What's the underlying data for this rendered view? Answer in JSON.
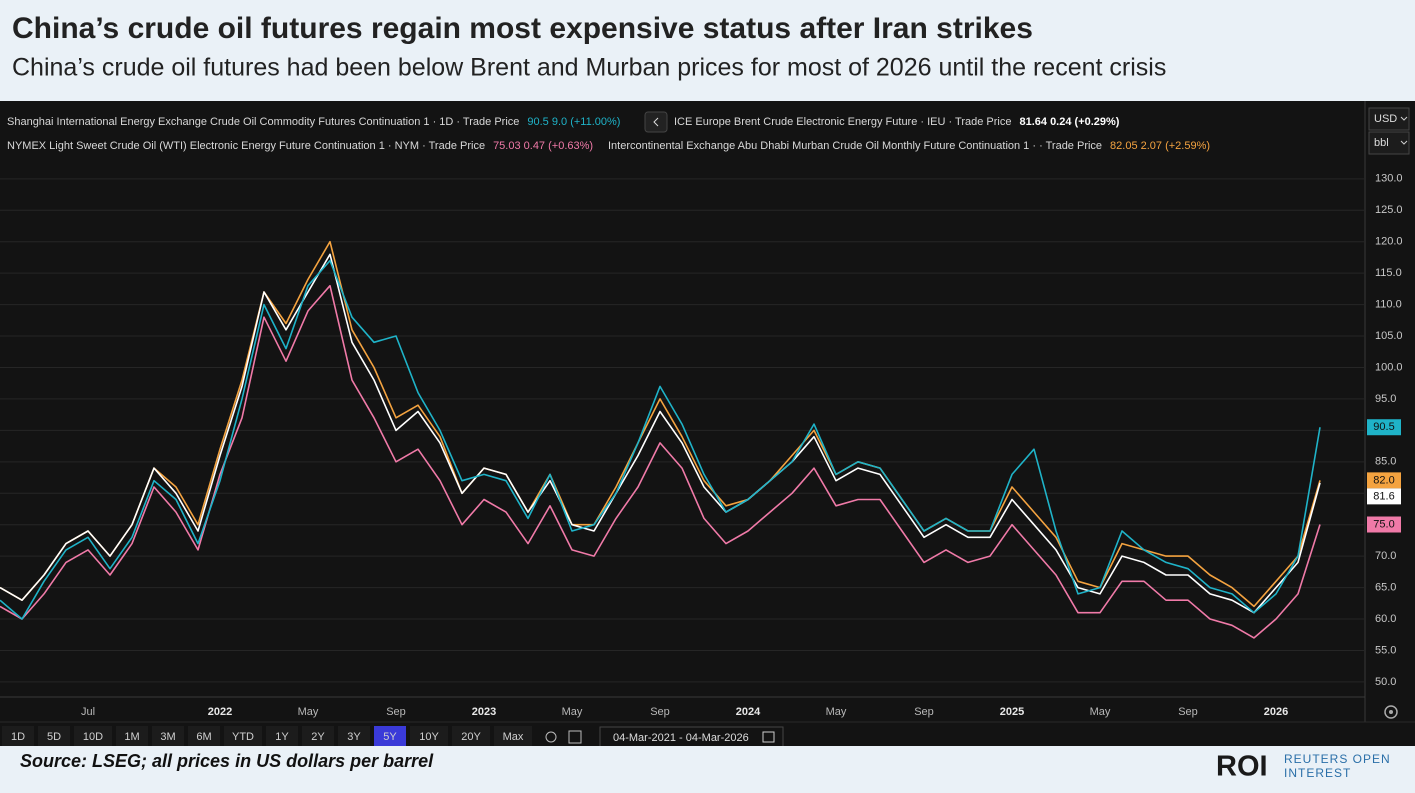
{
  "header": {
    "title": "China’s crude oil futures regain most expensive status after Iran strikes",
    "subtitle": "China’s crude oil futures had been below Brent and Murban prices for most of 2026 until the recent crisis"
  },
  "chart_data": {
    "type": "line",
    "categories": [
      null,
      null,
      null,
      null,
      "Jul",
      null,
      null,
      null,
      null,
      null,
      "2022",
      null,
      null,
      null,
      "May",
      null,
      null,
      null,
      "Sep",
      null,
      null,
      null,
      "2023",
      null,
      null,
      null,
      "May",
      null,
      null,
      null,
      "Sep",
      null,
      null,
      null,
      "2024",
      null,
      null,
      null,
      "May",
      null,
      null,
      null,
      "Sep",
      null,
      null,
      null,
      "2025",
      null,
      null,
      null,
      "May",
      null,
      null,
      null,
      "Sep",
      null,
      null,
      null,
      "2026",
      null,
      null
    ],
    "series": [
      {
        "name": "Shanghai International Energy Exchange Crude Oil Commodity Futures Continuation 1 · 1D · Trade Price",
        "legend_value": "90.5  9.0 (+11.00%)",
        "end_label": "90.5",
        "color": "#1fb3c8",
        "values": [
          63,
          60,
          66,
          71,
          73,
          68,
          73,
          82,
          79,
          72,
          82,
          95,
          110,
          103,
          113,
          117,
          108,
          104,
          105,
          96,
          90,
          82,
          83,
          82,
          76,
          83,
          74,
          75,
          80,
          88,
          97,
          91,
          83,
          77,
          79,
          82,
          85,
          91,
          83,
          85,
          84,
          79,
          74,
          76,
          74,
          74,
          83,
          87,
          74,
          64,
          65,
          74,
          71,
          69,
          68,
          65,
          64,
          61,
          64,
          70,
          90.5
        ]
      },
      {
        "name": "ICE Europe Brent Crude Electronic Energy Future · IEU · Trade Price",
        "legend_value": "81.64  0.24 (+0.29%)",
        "end_label": "81.6",
        "color": "#ffffff",
        "values": [
          65,
          63,
          67,
          72,
          74,
          70,
          75,
          84,
          80,
          74,
          86,
          97,
          112,
          106,
          112,
          118,
          104,
          98,
          90,
          93,
          88,
          80,
          84,
          83,
          77,
          82,
          75,
          74,
          80,
          86,
          93,
          88,
          81,
          77,
          79,
          82,
          85,
          89,
          82,
          84,
          83,
          78,
          73,
          75,
          73,
          73,
          79,
          75,
          71,
          65,
          64,
          70,
          69,
          67,
          67,
          64,
          63,
          61,
          65,
          69,
          81.64
        ]
      },
      {
        "name": "NYMEX Light Sweet Crude Oil (WTI) Electronic Energy Future Continuation 1 · NYM · Trade Price",
        "legend_value": "75.03  0.47 (+0.63%)",
        "end_label": "75.0",
        "color": "#f07aa8",
        "values": [
          62,
          60,
          64,
          69,
          71,
          67,
          72,
          81,
          77,
          71,
          83,
          92,
          108,
          101,
          109,
          113,
          98,
          92,
          85,
          87,
          82,
          75,
          79,
          77,
          72,
          78,
          71,
          70,
          76,
          81,
          88,
          84,
          76,
          72,
          74,
          77,
          80,
          84,
          78,
          79,
          79,
          74,
          69,
          71,
          69,
          70,
          75,
          71,
          67,
          61,
          61,
          66,
          66,
          63,
          63,
          60,
          59,
          57,
          60,
          64,
          75.03
        ]
      },
      {
        "name": "Intercontinental Exchange Abu Dhabi Murban Crude Oil Monthly Future Continuation 1 · · Trade Price",
        "legend_value": "82.05  2.07 (+2.59%)",
        "end_label": "82.0",
        "color": "#f4a340",
        "values": [
          65,
          63,
          67,
          72,
          74,
          70,
          75,
          84,
          81,
          75,
          87,
          98,
          112,
          107,
          114,
          120,
          106,
          100,
          92,
          94,
          89,
          80,
          84,
          83,
          77,
          83,
          75,
          75,
          81,
          88,
          95,
          89,
          82,
          78,
          79,
          82,
          86,
          90,
          83,
          85,
          84,
          79,
          74,
          76,
          74,
          74,
          81,
          77,
          73,
          66,
          65,
          72,
          71,
          70,
          70,
          67,
          65,
          62,
          66,
          70,
          82.05
        ]
      }
    ],
    "ylim": [
      47.6,
      132.2
    ],
    "yticks": [
      {
        "value": 50,
        "label": "50.0"
      },
      {
        "value": 55,
        "label": "55.0"
      },
      {
        "value": 60,
        "label": "60.0"
      },
      {
        "value": 65,
        "label": "65.0"
      },
      {
        "value": 70,
        "label": "70.0"
      },
      {
        "value": 75,
        "label": "75.0"
      },
      {
        "value": 80,
        "label": "80.0"
      },
      {
        "value": 85,
        "label": "85.0"
      },
      {
        "value": 90,
        "label": "90.0"
      },
      {
        "value": 95,
        "label": "95.0"
      },
      {
        "value": 100,
        "label": "100.0"
      },
      {
        "value": 105,
        "label": "105.0"
      },
      {
        "value": 110,
        "label": "110.0"
      },
      {
        "value": 115,
        "label": "115.0"
      },
      {
        "value": 120,
        "label": "120.0"
      },
      {
        "value": 125,
        "label": "125.0"
      },
      {
        "value": 130,
        "label": "130.0"
      }
    ],
    "grid": true
  },
  "toolbar": {
    "currency": "USD",
    "unit": "bbl",
    "ranges": [
      "1D",
      "5D",
      "10D",
      "1M",
      "3M",
      "6M",
      "YTD",
      "1Y",
      "2Y",
      "3Y",
      "5Y",
      "10Y",
      "20Y",
      "Max"
    ],
    "active_range": "5Y",
    "date_range": "04-Mar-2021  -  04-Mar-2026"
  },
  "footer": {
    "source": "Source: LSEG; all prices in US dollars per barrel",
    "logo": {
      "mark": "ROI",
      "lines": [
        "REUTERS OPEN",
        "INTEREST"
      ]
    }
  }
}
